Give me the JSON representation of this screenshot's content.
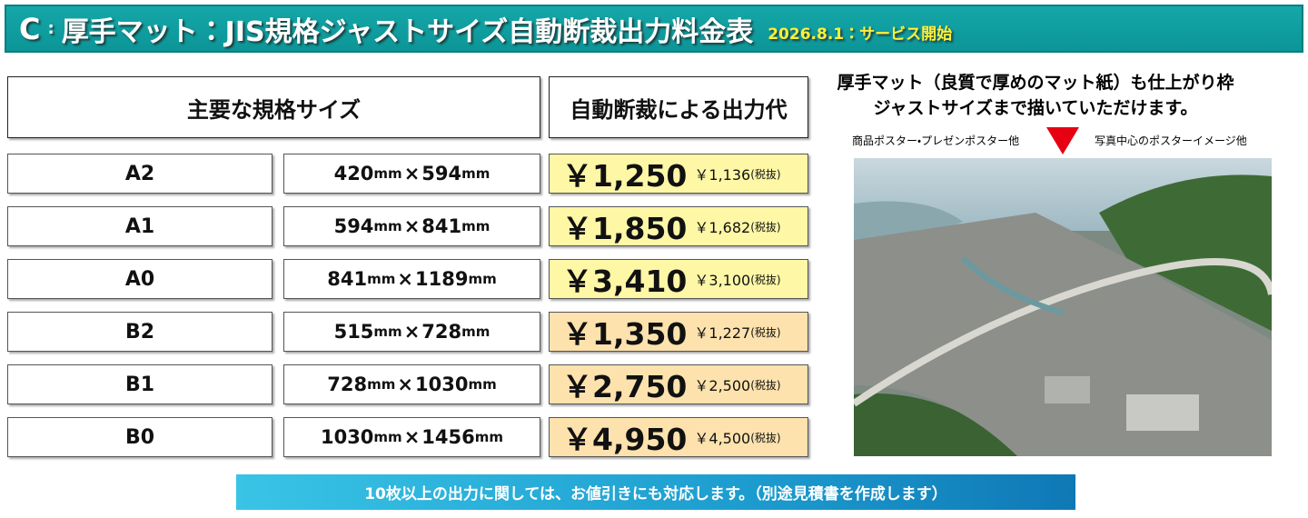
{
  "header": {
    "label": "C",
    "separator": ":",
    "title": "厚手マット：JIS規格ジャストサイズ自動断裁出力料金表",
    "badge": "2026.8.1：サービス開始"
  },
  "table": {
    "headers": [
      "主要な規格サイズ",
      "自動断裁による出力代"
    ],
    "unit": "mm",
    "times": "×",
    "tax_note": "(税抜)",
    "rows": [
      {
        "size": "A2",
        "width": "420",
        "height": "594",
        "price": "￥1,250",
        "price_ex": "￥1,136"
      },
      {
        "size": "A1",
        "width": "594",
        "height": "841",
        "price": "￥1,850",
        "price_ex": "￥1,682"
      },
      {
        "size": "A0",
        "width": "841",
        "height": "1189",
        "price": "￥3,410",
        "price_ex": "￥3,100"
      },
      {
        "size": "B2",
        "width": "515",
        "height": "728",
        "price": "￥1,350",
        "price_ex": "￥1,227"
      },
      {
        "size": "B1",
        "width": "728",
        "height": "1030",
        "price": "￥2,750",
        "price_ex": "￥2,500"
      },
      {
        "size": "B0",
        "width": "1030",
        "height": "1456",
        "price": "￥4,950",
        "price_ex": "￥4,500"
      }
    ]
  },
  "side": {
    "caption": [
      "厚手マット（良質で厚めのマット紙）も仕上がり枠",
      "ジャストサイズまで描いていただけます。"
    ],
    "left_label": "商品ポスター・プレゼンポスター他",
    "right_label": "写真中心のポスターイメージ他"
  },
  "footer": {
    "note": "10枚以上の出力に関しては、お値引きにも対応します。（別途見積書を作成します）"
  }
}
